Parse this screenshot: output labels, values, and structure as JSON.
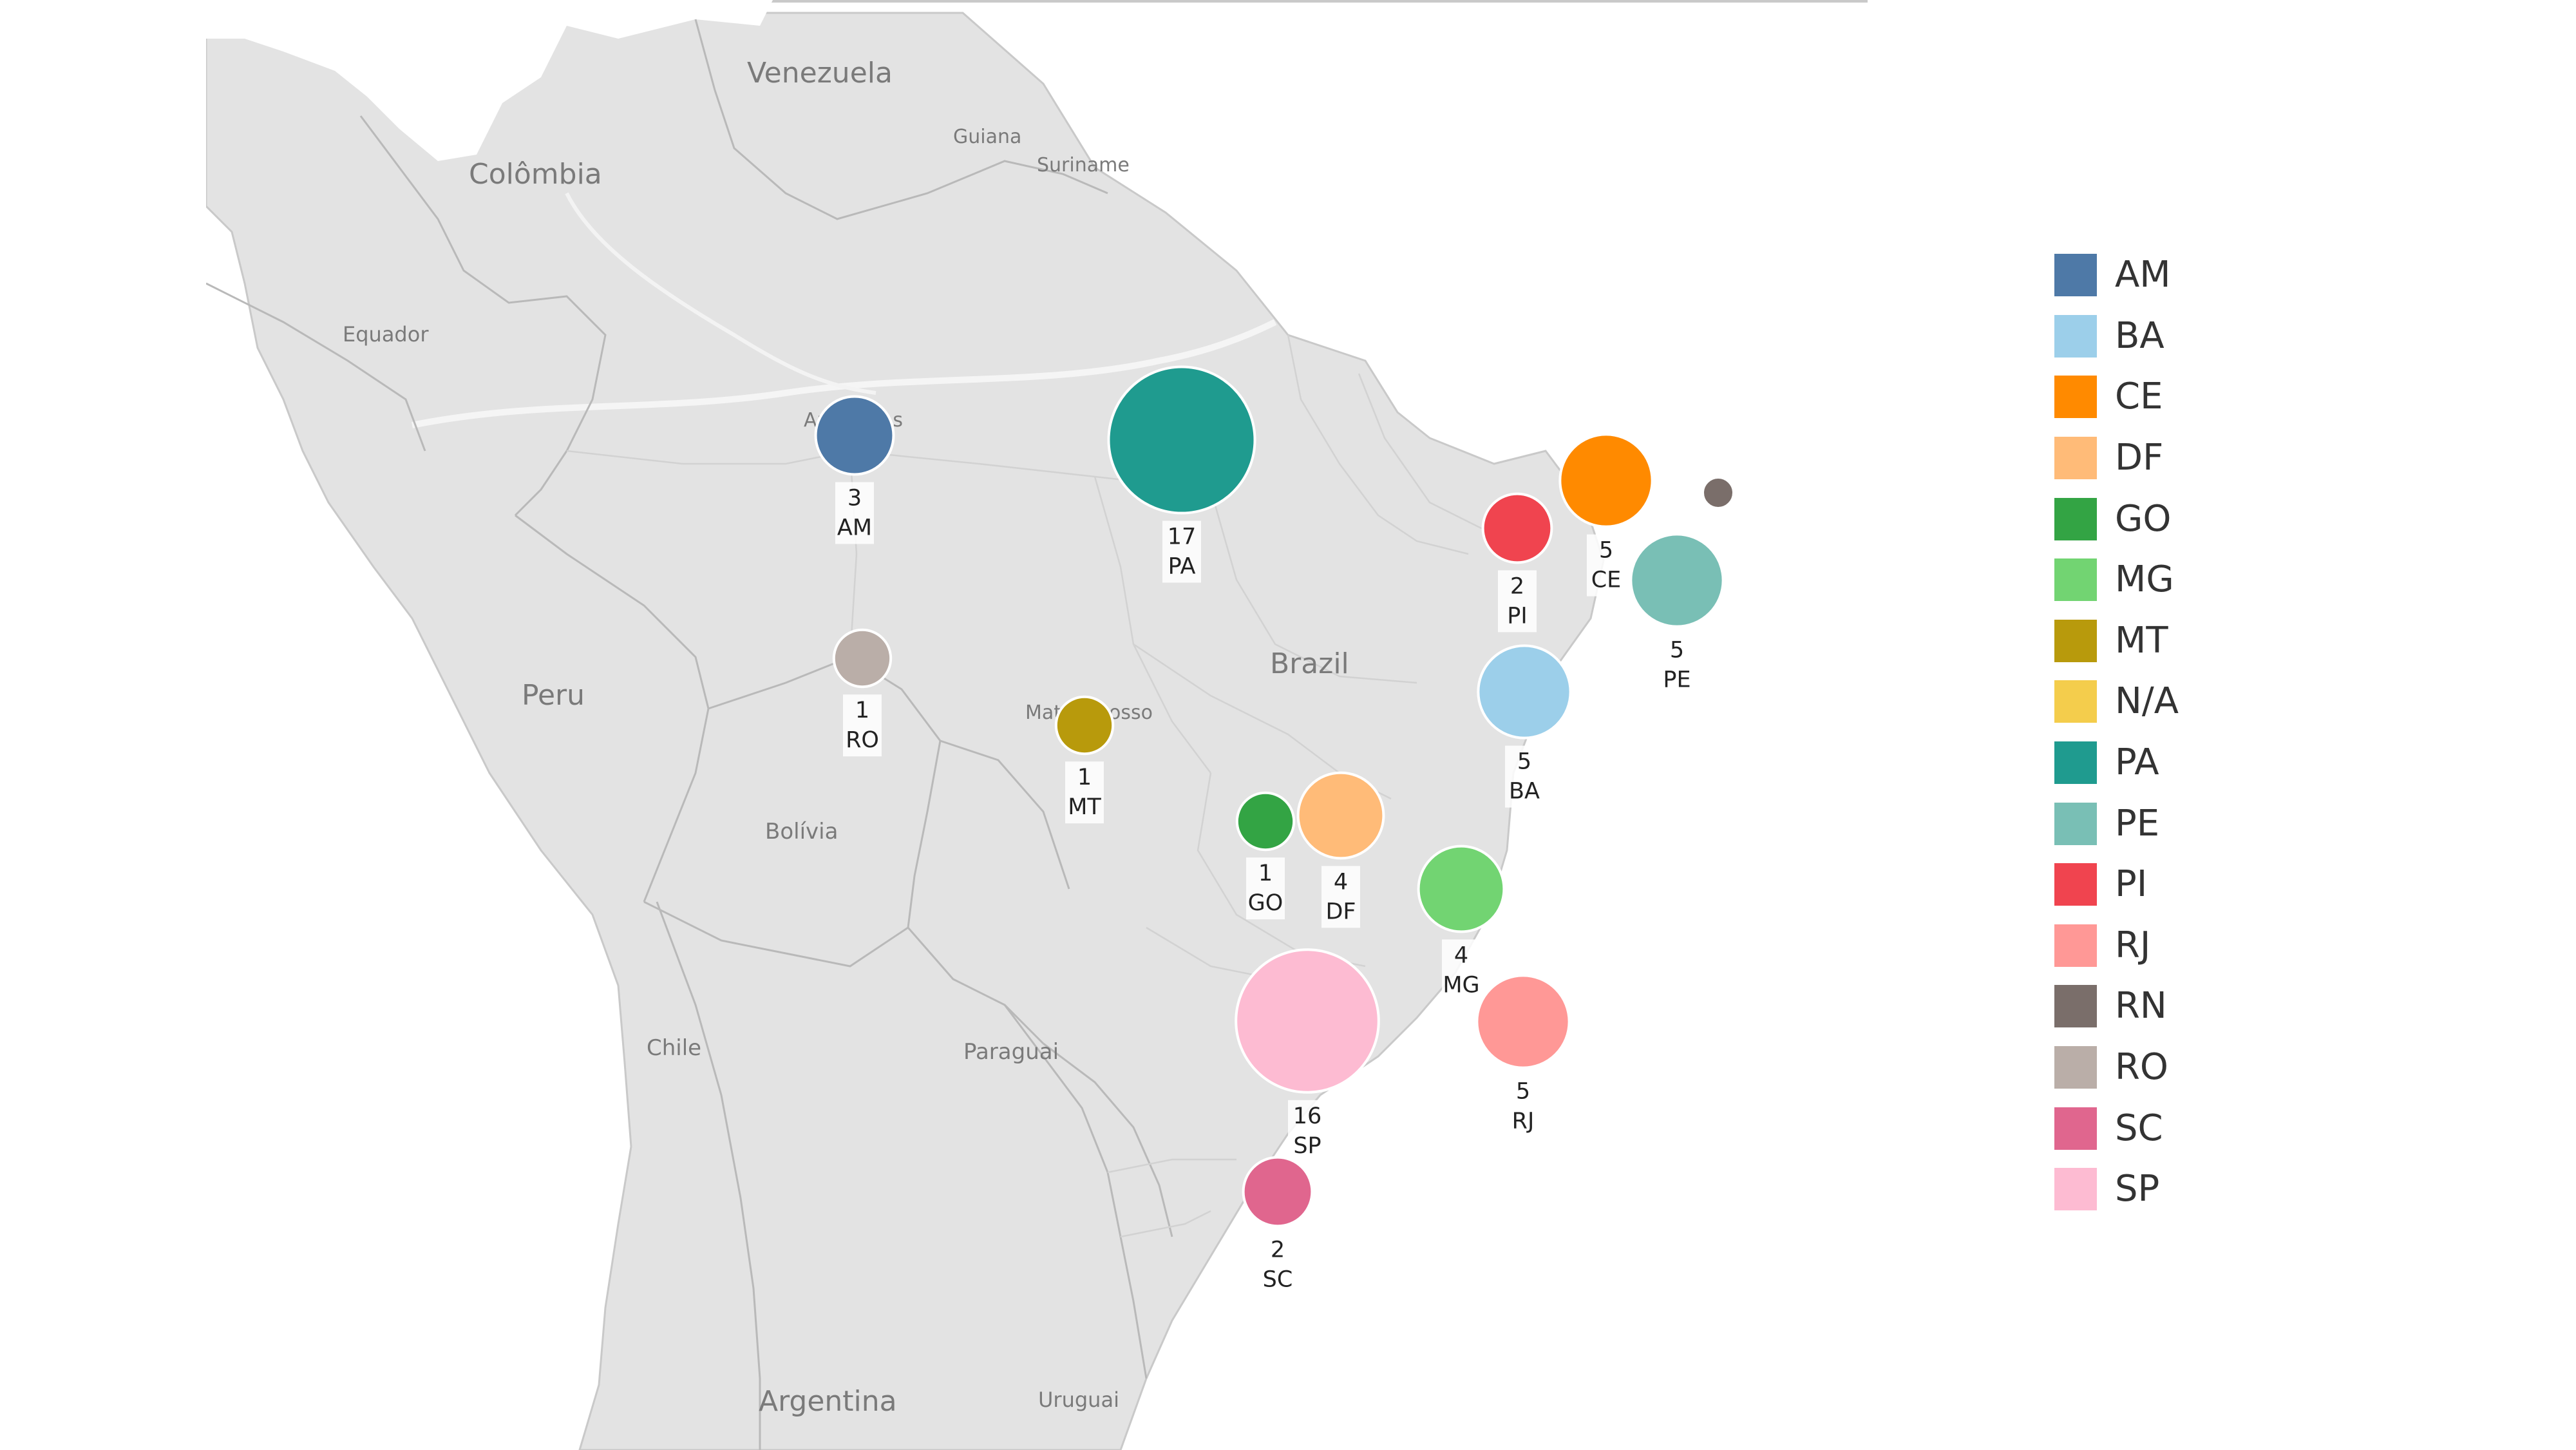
{
  "map": {
    "labels": {
      "venezuela": "Venezuela",
      "guiana": "Guiana",
      "suriname": "Suriname",
      "colombia": "Colômbia",
      "equador": "Equador",
      "amazonas_left": "Ar",
      "amazonas_right": "as",
      "brazil": "Brazil",
      "peru": "Peru",
      "mato_grosso_left": "Mato",
      "mato_grosso_right": "osso",
      "bolivia": "Bolívia",
      "chile": "Chile",
      "paraguai": "Paraguai",
      "argentina": "Argentina",
      "uruguai": "Uruguai"
    },
    "colors": {
      "land": "#e3e3e3",
      "water": "#ffffff",
      "border": "#b9b9b9",
      "state_border": "#d4d4d4"
    }
  },
  "markers": [
    {
      "code": "AM",
      "value": "3",
      "count": 3,
      "color": "#4e79a7"
    },
    {
      "code": "PA",
      "value": "17",
      "count": 17,
      "color": "#1f9b8f"
    },
    {
      "code": "CE",
      "value": "5",
      "count": 5,
      "color": "#ff8a00"
    },
    {
      "code": "RN",
      "value": "",
      "count": null,
      "color": "#7a6e6a"
    },
    {
      "code": "PI",
      "value": "2",
      "count": 2,
      "color": "#f0444f"
    },
    {
      "code": "PE",
      "value": "5",
      "count": 5,
      "color": "#79bfb5"
    },
    {
      "code": "RO",
      "value": "1",
      "count": 1,
      "color": "#baaea8"
    },
    {
      "code": "MT",
      "value": "1",
      "count": 1,
      "color": "#b89a0c"
    },
    {
      "code": "BA",
      "value": "5",
      "count": 5,
      "color": "#9ccfea"
    },
    {
      "code": "GO",
      "value": "1",
      "count": 1,
      "color": "#33a444"
    },
    {
      "code": "DF",
      "value": "4",
      "count": 4,
      "color": "#ffbb78"
    },
    {
      "code": "MG",
      "value": "4",
      "count": 4,
      "color": "#72d472"
    },
    {
      "code": "SP",
      "value": "16",
      "count": 16,
      "color": "#fdbbd2"
    },
    {
      "code": "RJ",
      "value": "5",
      "count": 5,
      "color": "#ff9896"
    },
    {
      "code": "SC",
      "value": "2",
      "count": 2,
      "color": "#e0668e"
    }
  ],
  "legend": {
    "items": [
      {
        "label": "AM",
        "color": "#4e79a7"
      },
      {
        "label": "BA",
        "color": "#9ccfea"
      },
      {
        "label": "CE",
        "color": "#ff8a00"
      },
      {
        "label": "DF",
        "color": "#ffbb78"
      },
      {
        "label": "GO",
        "color": "#33a444"
      },
      {
        "label": "MG",
        "color": "#72d472"
      },
      {
        "label": "MT",
        "color": "#b89a0c"
      },
      {
        "label": "N/A",
        "color": "#f4cd4c"
      },
      {
        "label": "PA",
        "color": "#1f9b8f"
      },
      {
        "label": "PE",
        "color": "#79bfb5"
      },
      {
        "label": "PI",
        "color": "#f0444f"
      },
      {
        "label": "RJ",
        "color": "#ff9896"
      },
      {
        "label": "RN",
        "color": "#7a6e6a"
      },
      {
        "label": "RO",
        "color": "#baaea8"
      },
      {
        "label": "SC",
        "color": "#e0668e"
      },
      {
        "label": "SP",
        "color": "#fdbbd2"
      }
    ]
  }
}
